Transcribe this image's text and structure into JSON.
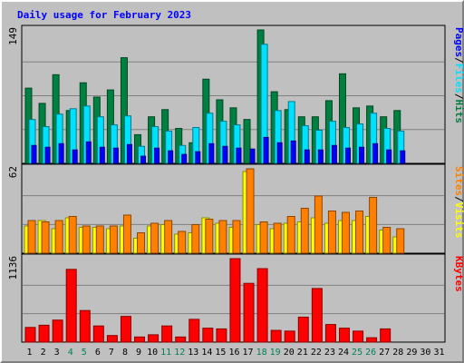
{
  "chart_data": {
    "type": "bar",
    "title": "Daily usage for February 2023",
    "days": [
      "1",
      "2",
      "3",
      "4",
      "5",
      "6",
      "7",
      "8",
      "9",
      "10",
      "11",
      "12",
      "13",
      "14",
      "15",
      "16",
      "17",
      "18",
      "19",
      "20",
      "21",
      "22",
      "23",
      "24",
      "25",
      "26",
      "27",
      "28",
      "29",
      "30",
      "31"
    ],
    "weekend_days": [
      "4",
      "5",
      "11",
      "12",
      "18",
      "19",
      "25",
      "26"
    ],
    "panels": [
      {
        "id": "hits-files-pages",
        "max_label": "149",
        "ymax": 149,
        "series": [
          {
            "name": "Hits",
            "color": "#008040",
            "values": [
              84,
              67,
              99,
              59,
              90,
              74,
              82,
              118,
              32,
              52,
              60,
              39,
              23,
              94,
              71,
              62,
              49,
              149,
              80,
              60,
              52,
              52,
              70,
              100,
              62,
              64,
              52,
              59,
              0,
              0,
              0
            ]
          },
          {
            "name": "Files",
            "color": "#00e0ff",
            "values": [
              49,
              41,
              55,
              61,
              64,
              52,
              43,
              53,
              19,
              41,
              36,
              20,
              40,
              56,
              47,
              43,
              0,
              133,
              59,
              69,
              42,
              37,
              47,
              40,
              44,
              56,
              39,
              36,
              0,
              0,
              0
            ]
          },
          {
            "name": "Pages",
            "color": "#0000ff",
            "values": [
              20,
              18,
              22,
              15,
              24,
              18,
              17,
              21,
              8,
              17,
              14,
              10,
              13,
              22,
              19,
              17,
              16,
              29,
              23,
              25,
              15,
              15,
              20,
              17,
              18,
              22,
              15,
              14,
              0,
              0,
              0
            ]
          }
        ]
      },
      {
        "id": "visits-sites",
        "max_label": "62",
        "ymax": 62,
        "series": [
          {
            "name": "Visits",
            "color": "#ffff00",
            "values": [
              20,
              24,
              18,
              26,
              19,
              19,
              18,
              20,
              11,
              20,
              21,
              14,
              15,
              26,
              22,
              19,
              60,
              21,
              18,
              22,
              23,
              26,
              22,
              24,
              24,
              27,
              17,
              12,
              0,
              0,
              0
            ]
          },
          {
            "name": "Sites",
            "color": "#ff8000",
            "values": [
              24,
              23,
              24,
              27,
              20,
              20,
              20,
              28,
              15,
              22,
              24,
              16,
              21,
              25,
              24,
              24,
              62,
              23,
              22,
              27,
              33,
              42,
              31,
              30,
              31,
              41,
              19,
              18,
              0,
              0,
              0
            ]
          }
        ]
      },
      {
        "id": "kbytes",
        "max_label": "1136",
        "ymax": 1136,
        "series": [
          {
            "name": "KBytes",
            "color": "#ff0000",
            "values": [
              200,
              230,
              300,
              990,
              430,
              220,
              90,
              350,
              70,
              100,
              220,
              70,
              310,
              190,
              180,
              1136,
              800,
              1000,
              160,
              150,
              340,
              730,
              240,
              190,
              150,
              60,
              180,
              0,
              0,
              0,
              0
            ]
          }
        ]
      }
    ],
    "legend_separator": "/",
    "ylim_min": 0
  }
}
